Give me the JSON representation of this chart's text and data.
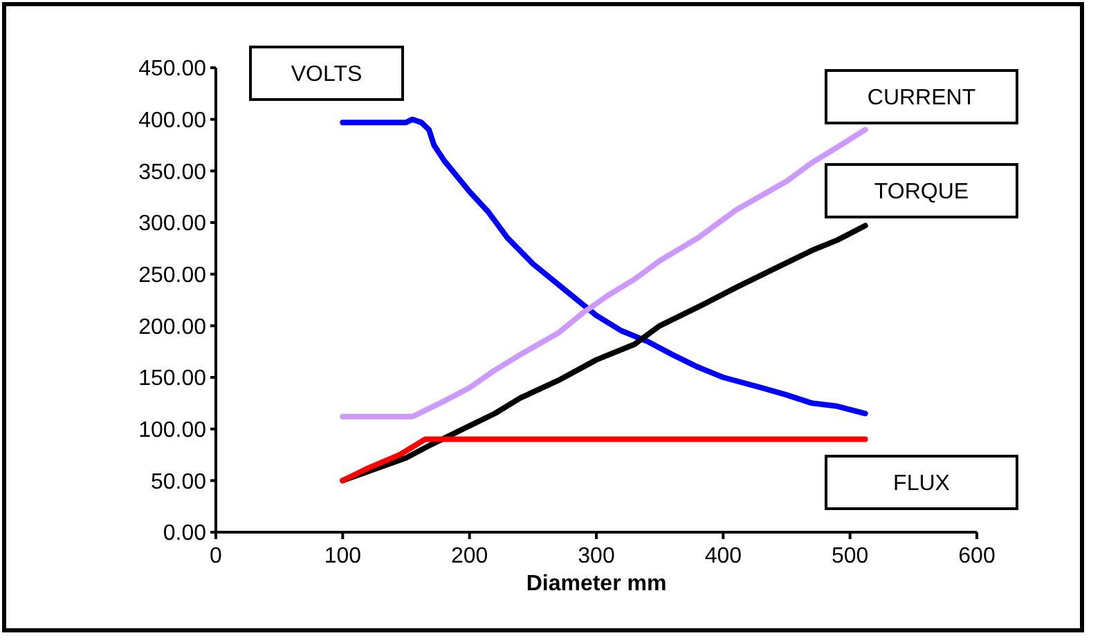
{
  "chart_data": {
    "type": "line",
    "xlabel": "Diameter mm",
    "xlim": [
      0,
      600
    ],
    "xticks": [
      0,
      100,
      200,
      300,
      400,
      500,
      600
    ],
    "ylim": [
      0,
      450
    ],
    "yticks": [
      {
        "value": 0,
        "label": "0.00"
      },
      {
        "value": 50,
        "label": "50.00"
      },
      {
        "value": 100,
        "label": "100.00"
      },
      {
        "value": 150,
        "label": "150.00"
      },
      {
        "value": 200,
        "label": "200.00"
      },
      {
        "value": 250,
        "label": "250.00"
      },
      {
        "value": 300,
        "label": "300.00"
      },
      {
        "value": 350,
        "label": "350.00"
      },
      {
        "value": 400,
        "label": "400.00"
      },
      {
        "value": 450,
        "label": "450.00"
      }
    ],
    "grid": false,
    "marker": "none",
    "line_style": "solid",
    "series": [
      {
        "name": "VOLTS",
        "color": "#0000ff",
        "x": [
          100,
          150,
          155,
          162,
          168,
          172,
          180,
          200,
          215,
          230,
          250,
          265,
          280,
          300,
          320,
          340,
          360,
          380,
          400,
          430,
          450,
          470,
          490,
          512
        ],
        "values": [
          397,
          397,
          400,
          397,
          390,
          375,
          360,
          330,
          310,
          285,
          260,
          245,
          230,
          210,
          195,
          185,
          172,
          160,
          150,
          140,
          133,
          125,
          122,
          115
        ]
      },
      {
        "name": "CURRENT",
        "color": "#cc99ff",
        "x": [
          100,
          155,
          165,
          180,
          200,
          220,
          240,
          270,
          290,
          310,
          330,
          350,
          380,
          410,
          450,
          470,
          490,
          512
        ],
        "values": [
          112,
          112,
          118,
          127,
          140,
          157,
          172,
          193,
          213,
          230,
          245,
          263,
          285,
          312,
          340,
          358,
          373,
          390
        ]
      },
      {
        "name": "TORQUE",
        "color": "#000000",
        "x": [
          100,
          150,
          170,
          200,
          220,
          240,
          270,
          300,
          330,
          350,
          380,
          410,
          440,
          470,
          490,
          512
        ],
        "values": [
          50,
          72,
          85,
          103,
          115,
          130,
          147,
          167,
          182,
          200,
          218,
          237,
          255,
          273,
          283,
          297
        ]
      },
      {
        "name": "FLUX",
        "color": "#ff0000",
        "x": [
          100,
          120,
          145,
          165,
          512
        ],
        "values": [
          50,
          62,
          75,
          90,
          90
        ]
      }
    ]
  }
}
